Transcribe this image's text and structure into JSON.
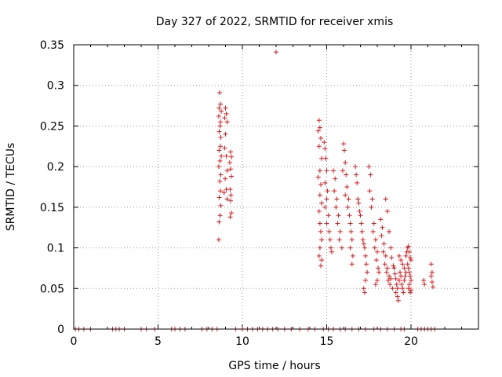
{
  "chart_data": {
    "type": "scatter",
    "title": "Day 327 of 2022, SRMTID for receiver xmis",
    "xlabel": "GPS time / hours",
    "ylabel": "SRMTID / TECUs",
    "xlim": [
      0,
      24
    ],
    "ylim": [
      0,
      0.35
    ],
    "x_ticks": [
      "0",
      "5",
      "10",
      "15",
      "20"
    ],
    "x_tick_values": [
      0,
      5,
      10,
      15,
      20
    ],
    "y_ticks": [
      "0",
      "0.05",
      "0.1",
      "0.15",
      "0.2",
      "0.25",
      "0.3",
      "0.35"
    ],
    "y_tick_values": [
      0,
      0.05,
      0.1,
      0.15,
      0.2,
      0.25,
      0.3,
      0.35
    ],
    "grid": true,
    "marker": "+",
    "color": "#e41a1c",
    "series": [
      {
        "name": "SRMTID",
        "points": [
          [
            0.1,
            0
          ],
          [
            0.3,
            0
          ],
          [
            0.6,
            0
          ],
          [
            1.0,
            0
          ],
          [
            2.3,
            0
          ],
          [
            2.5,
            0
          ],
          [
            2.7,
            0
          ],
          [
            3.0,
            0
          ],
          [
            4.0,
            0
          ],
          [
            4.3,
            0
          ],
          [
            4.8,
            0
          ],
          [
            5.8,
            0
          ],
          [
            6.0,
            0
          ],
          [
            6.3,
            0
          ],
          [
            6.6,
            0
          ],
          [
            7.6,
            0
          ],
          [
            7.9,
            0
          ],
          [
            8.2,
            0
          ],
          [
            8.5,
            0
          ],
          [
            9.6,
            0
          ],
          [
            10.0,
            0
          ],
          [
            10.3,
            0
          ],
          [
            10.6,
            0
          ],
          [
            10.9,
            0
          ],
          [
            11.2,
            0
          ],
          [
            11.5,
            0
          ],
          [
            11.8,
            0
          ],
          [
            12.1,
            0
          ],
          [
            12.5,
            0
          ],
          [
            12.9,
            0
          ],
          [
            13.4,
            0
          ],
          [
            13.9,
            0
          ],
          [
            14.3,
            0
          ],
          [
            14.8,
            0
          ],
          [
            15.1,
            0
          ],
          [
            15.4,
            0
          ],
          [
            15.8,
            0
          ],
          [
            16.1,
            0
          ],
          [
            16.5,
            0
          ],
          [
            16.9,
            0
          ],
          [
            17.3,
            0
          ],
          [
            17.8,
            0
          ],
          [
            18.2,
            0
          ],
          [
            18.6,
            0
          ],
          [
            19.0,
            0
          ],
          [
            19.4,
            0
          ],
          [
            19.6,
            0
          ],
          [
            20.4,
            0
          ],
          [
            20.6,
            0
          ],
          [
            20.8,
            0
          ],
          [
            21.0,
            0
          ],
          [
            21.2,
            0
          ],
          [
            21.4,
            0
          ],
          [
            8.65,
            0.291
          ],
          [
            8.7,
            0.277
          ],
          [
            8.62,
            0.272
          ],
          [
            8.75,
            0.268
          ],
          [
            8.6,
            0.262
          ],
          [
            8.7,
            0.255
          ],
          [
            8.68,
            0.25
          ],
          [
            8.63,
            0.243
          ],
          [
            8.72,
            0.236
          ],
          [
            8.7,
            0.225
          ],
          [
            8.62,
            0.22
          ],
          [
            8.75,
            0.213
          ],
          [
            8.67,
            0.207
          ],
          [
            8.6,
            0.2
          ],
          [
            8.72,
            0.19
          ],
          [
            8.66,
            0.182
          ],
          [
            8.7,
            0.17
          ],
          [
            8.63,
            0.162
          ],
          [
            8.72,
            0.152
          ],
          [
            8.68,
            0.14
          ],
          [
            8.62,
            0.132
          ],
          [
            8.6,
            0.11
          ],
          [
            9.0,
            0.272
          ],
          [
            9.05,
            0.265
          ],
          [
            8.95,
            0.26
          ],
          [
            9.1,
            0.255
          ],
          [
            9.0,
            0.24
          ],
          [
            8.95,
            0.223
          ],
          [
            9.05,
            0.213
          ],
          [
            9.1,
            0.195
          ],
          [
            8.98,
            0.185
          ],
          [
            9.05,
            0.172
          ],
          [
            8.92,
            0.168
          ],
          [
            9.1,
            0.16
          ],
          [
            9.3,
            0.218
          ],
          [
            9.35,
            0.212
          ],
          [
            9.25,
            0.205
          ],
          [
            9.3,
            0.197
          ],
          [
            9.35,
            0.188
          ],
          [
            9.28,
            0.172
          ],
          [
            9.32,
            0.165
          ],
          [
            9.3,
            0.158
          ],
          [
            9.35,
            0.143
          ],
          [
            9.28,
            0.138
          ],
          [
            12.0,
            0.341
          ],
          [
            14.55,
            0.257
          ],
          [
            14.6,
            0.248
          ],
          [
            14.5,
            0.244
          ],
          [
            14.65,
            0.235
          ],
          [
            14.55,
            0.225
          ],
          [
            14.7,
            0.21
          ],
          [
            14.6,
            0.195
          ],
          [
            14.5,
            0.187
          ],
          [
            14.65,
            0.178
          ],
          [
            14.6,
            0.165
          ],
          [
            14.7,
            0.155
          ],
          [
            14.55,
            0.145
          ],
          [
            14.6,
            0.13
          ],
          [
            14.65,
            0.12
          ],
          [
            14.7,
            0.11
          ],
          [
            14.6,
            0.1
          ],
          [
            14.55,
            0.09
          ],
          [
            14.7,
            0.085
          ],
          [
            14.65,
            0.078
          ],
          [
            14.85,
            0.23
          ],
          [
            14.9,
            0.222
          ],
          [
            14.95,
            0.21
          ],
          [
            15.0,
            0.195
          ],
          [
            14.9,
            0.18
          ],
          [
            15.05,
            0.17
          ],
          [
            15.0,
            0.16
          ],
          [
            14.9,
            0.15
          ],
          [
            15.1,
            0.14
          ],
          [
            15.0,
            0.13
          ],
          [
            15.15,
            0.12
          ],
          [
            15.2,
            0.11
          ],
          [
            15.25,
            0.1
          ],
          [
            15.3,
            0.095
          ],
          [
            15.4,
            0.195
          ],
          [
            15.5,
            0.185
          ],
          [
            15.45,
            0.17
          ],
          [
            15.6,
            0.16
          ],
          [
            15.55,
            0.15
          ],
          [
            15.7,
            0.14
          ],
          [
            15.65,
            0.13
          ],
          [
            15.8,
            0.12
          ],
          [
            15.75,
            0.11
          ],
          [
            15.9,
            0.1
          ],
          [
            16.0,
            0.228
          ],
          [
            16.05,
            0.22
          ],
          [
            16.1,
            0.205
          ],
          [
            15.95,
            0.195
          ],
          [
            16.15,
            0.19
          ],
          [
            16.2,
            0.175
          ],
          [
            16.1,
            0.165
          ],
          [
            16.3,
            0.16
          ],
          [
            16.25,
            0.15
          ],
          [
            16.35,
            0.14
          ],
          [
            16.4,
            0.13
          ],
          [
            16.45,
            0.12
          ],
          [
            16.5,
            0.11
          ],
          [
            16.4,
            0.1
          ],
          [
            16.55,
            0.09
          ],
          [
            16.5,
            0.08
          ],
          [
            16.7,
            0.2
          ],
          [
            16.75,
            0.19
          ],
          [
            16.8,
            0.18
          ],
          [
            16.85,
            0.16
          ],
          [
            16.9,
            0.155
          ],
          [
            16.95,
            0.145
          ],
          [
            17.0,
            0.14
          ],
          [
            17.05,
            0.13
          ],
          [
            17.1,
            0.12
          ],
          [
            17.15,
            0.11
          ],
          [
            17.2,
            0.105
          ],
          [
            17.25,
            0.1
          ],
          [
            17.3,
            0.09
          ],
          [
            17.35,
            0.08
          ],
          [
            17.4,
            0.07
          ],
          [
            17.3,
            0.06
          ],
          [
            17.2,
            0.05
          ],
          [
            17.25,
            0.045
          ],
          [
            17.5,
            0.2
          ],
          [
            17.6,
            0.19
          ],
          [
            17.55,
            0.17
          ],
          [
            17.7,
            0.16
          ],
          [
            17.65,
            0.15
          ],
          [
            17.8,
            0.13
          ],
          [
            17.75,
            0.12
          ],
          [
            17.9,
            0.11
          ],
          [
            17.85,
            0.1
          ],
          [
            18.0,
            0.095
          ],
          [
            17.95,
            0.085
          ],
          [
            18.05,
            0.075
          ],
          [
            18.1,
            0.07
          ],
          [
            18.0,
            0.06
          ],
          [
            17.9,
            0.055
          ],
          [
            18.2,
            0.135
          ],
          [
            18.3,
            0.125
          ],
          [
            18.25,
            0.115
          ],
          [
            18.4,
            0.105
          ],
          [
            18.35,
            0.095
          ],
          [
            18.5,
            0.09
          ],
          [
            18.45,
            0.08
          ],
          [
            18.6,
            0.075
          ],
          [
            18.55,
            0.07
          ],
          [
            18.7,
            0.065
          ],
          [
            18.65,
            0.06
          ],
          [
            18.8,
            0.062
          ],
          [
            18.75,
            0.055
          ],
          [
            18.9,
            0.05
          ],
          [
            18.5,
            0.16
          ],
          [
            18.6,
            0.145
          ],
          [
            18.7,
            0.12
          ],
          [
            18.8,
            0.1
          ],
          [
            18.85,
            0.088
          ],
          [
            18.95,
            0.078
          ],
          [
            19.0,
            0.075
          ],
          [
            19.05,
            0.068
          ],
          [
            19.1,
            0.062
          ],
          [
            19.15,
            0.055
          ],
          [
            19.2,
            0.05
          ],
          [
            19.1,
            0.045
          ],
          [
            19.2,
            0.04
          ],
          [
            19.25,
            0.035
          ],
          [
            19.3,
            0.06
          ],
          [
            19.35,
            0.07
          ],
          [
            19.4,
            0.065
          ],
          [
            19.45,
            0.055
          ],
          [
            19.5,
            0.05
          ],
          [
            19.55,
            0.045
          ],
          [
            19.6,
            0.06
          ],
          [
            19.65,
            0.065
          ],
          [
            19.7,
            0.07
          ],
          [
            19.3,
            0.09
          ],
          [
            19.4,
            0.085
          ],
          [
            19.5,
            0.08
          ],
          [
            19.6,
            0.075
          ],
          [
            19.7,
            0.09
          ],
          [
            19.75,
            0.095
          ],
          [
            19.8,
            0.1
          ],
          [
            19.85,
            0.102
          ],
          [
            19.9,
            0.095
          ],
          [
            19.95,
            0.088
          ],
          [
            20.0,
            0.085
          ],
          [
            19.8,
            0.08
          ],
          [
            19.85,
            0.075
          ],
          [
            19.9,
            0.07
          ],
          [
            19.95,
            0.065
          ],
          [
            20.0,
            0.06
          ],
          [
            19.9,
            0.055
          ],
          [
            19.85,
            0.05
          ],
          [
            20.0,
            0.048
          ],
          [
            19.95,
            0.045
          ],
          [
            20.75,
            0.06
          ],
          [
            20.8,
            0.055
          ],
          [
            21.2,
            0.08
          ],
          [
            21.25,
            0.07
          ],
          [
            21.2,
            0.065
          ],
          [
            21.25,
            0.058
          ],
          [
            21.3,
            0.052
          ]
        ]
      }
    ]
  }
}
